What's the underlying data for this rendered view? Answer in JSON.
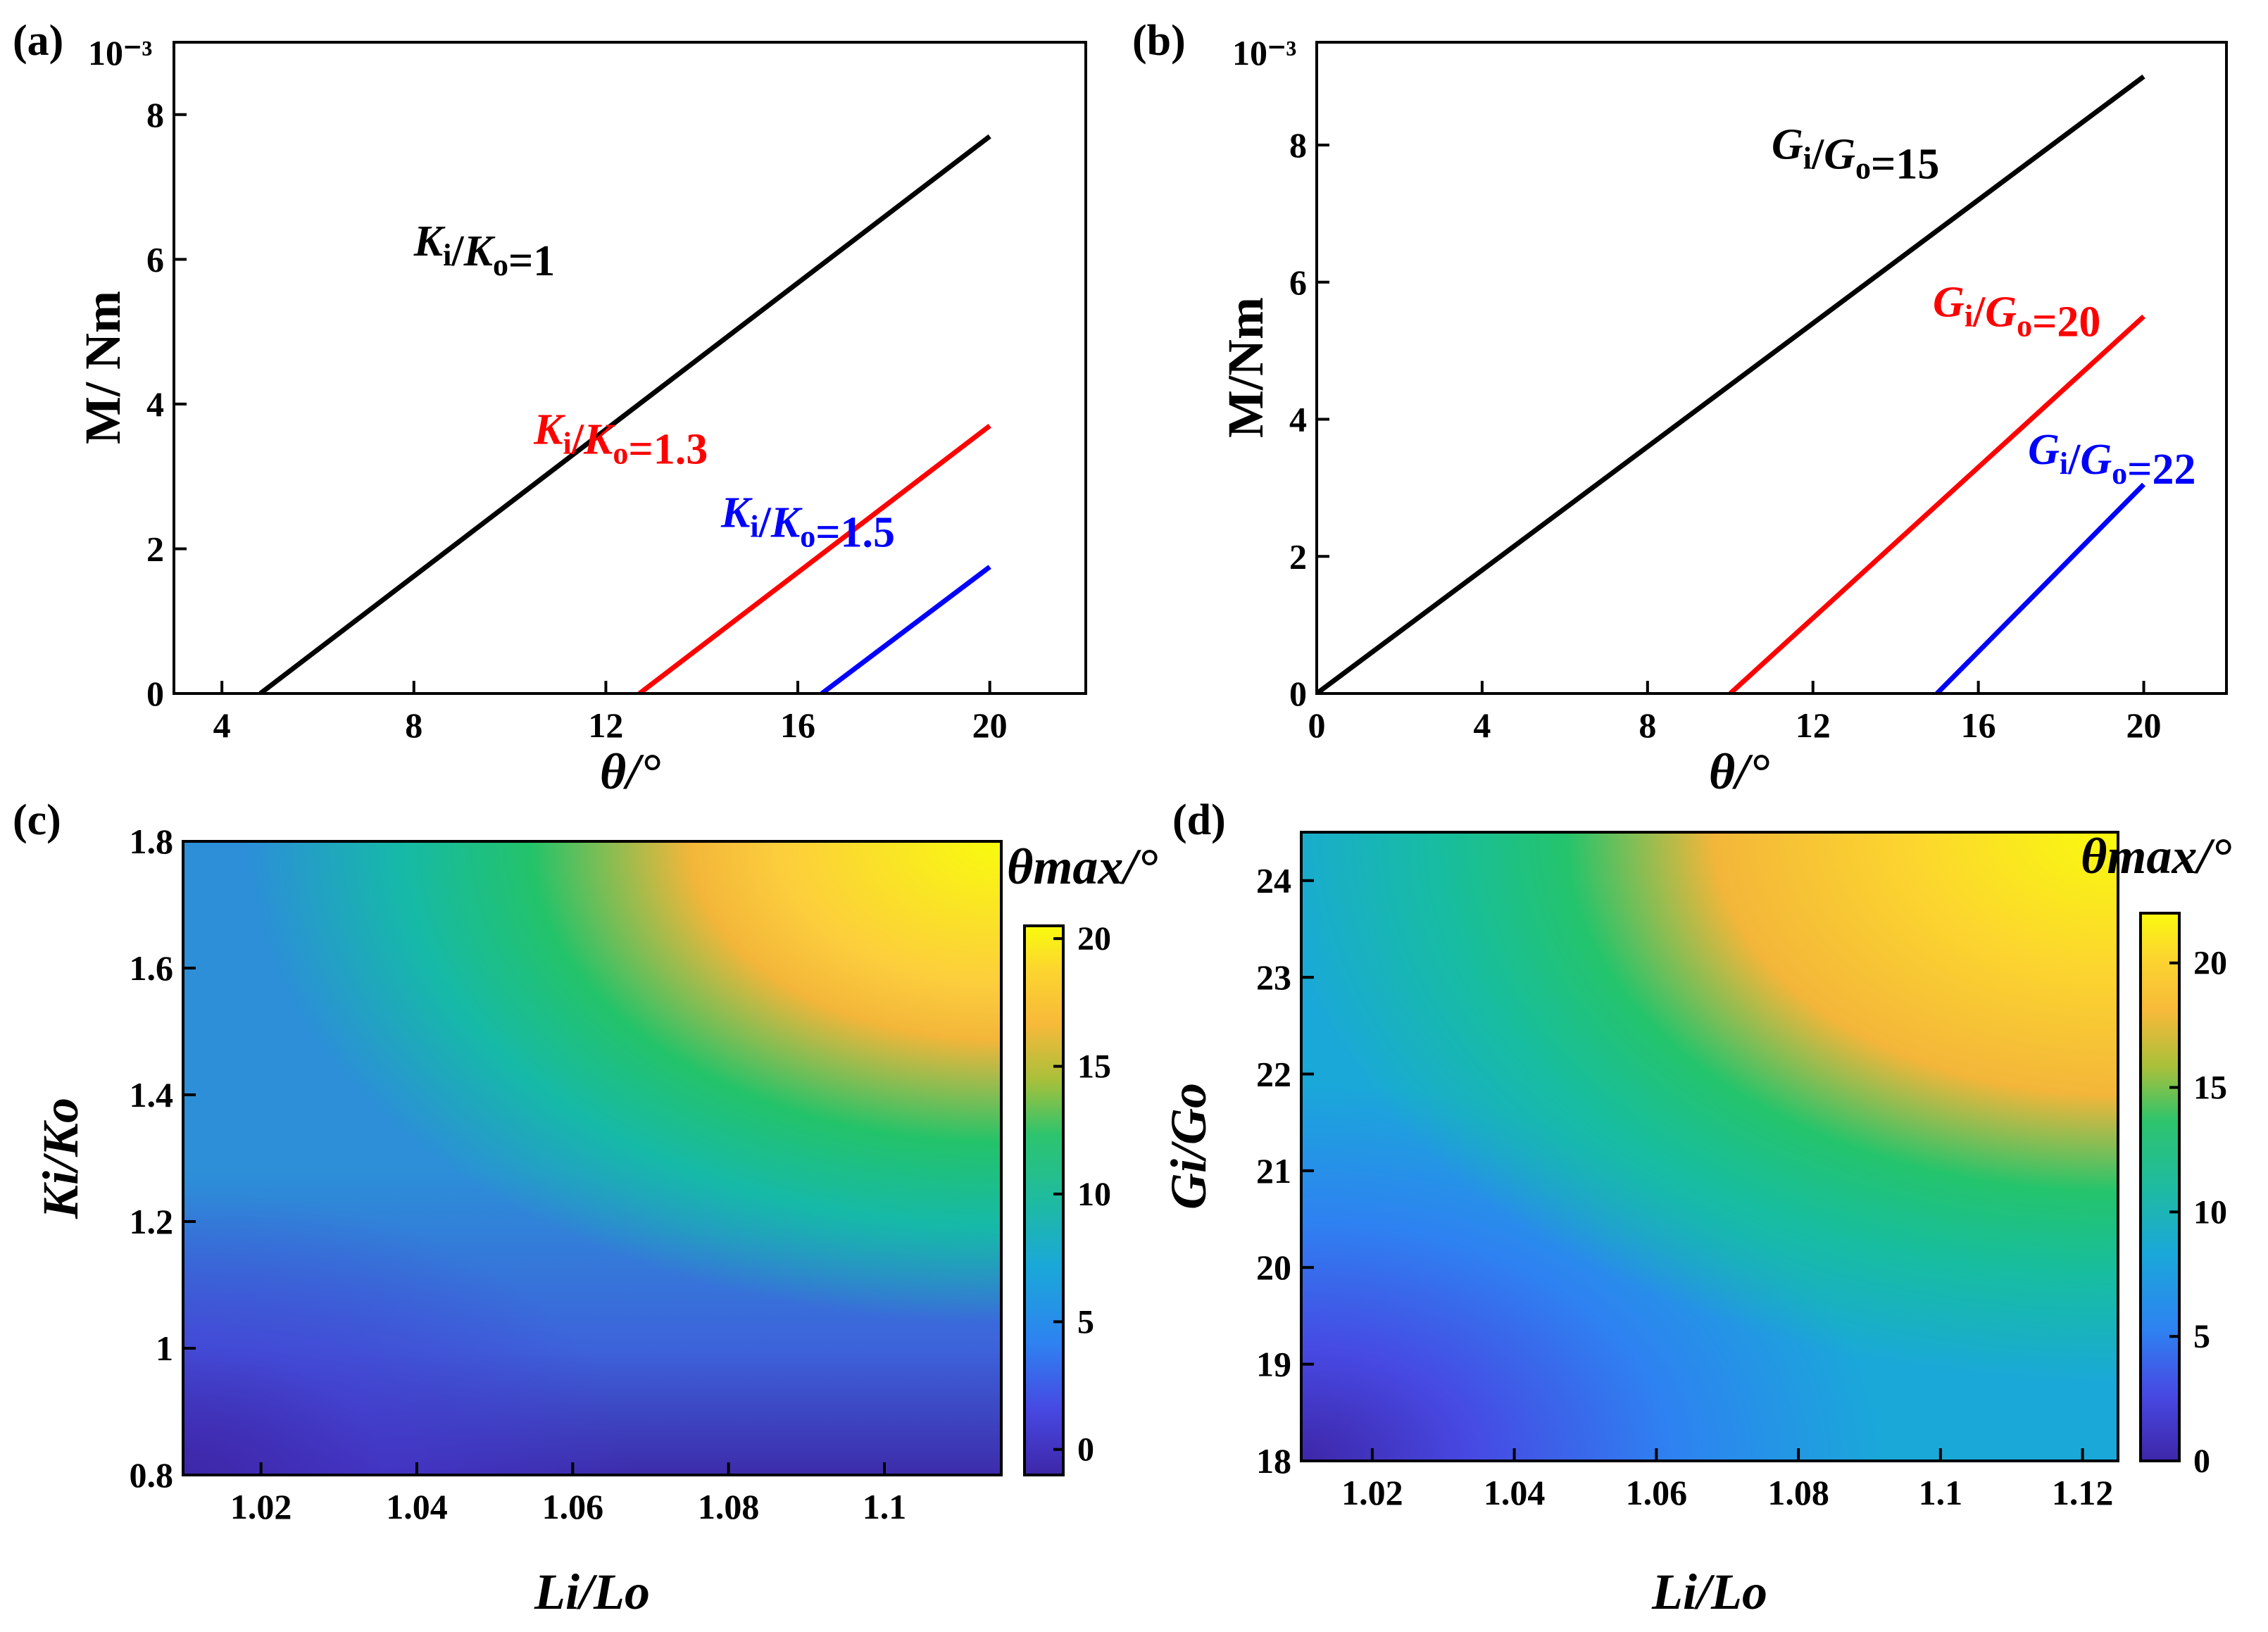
{
  "chart_data": [
    {
      "panel": "(a)",
      "type": "line",
      "xlabel": "θ/°",
      "ylabel": "M/ Nm",
      "yscale_label": "10⁻³",
      "xlim": [
        3,
        22
      ],
      "ylim": [
        0,
        9
      ],
      "xticks": [
        4,
        8,
        12,
        16,
        20
      ],
      "yticks": [
        0,
        2,
        4,
        6,
        8
      ],
      "series": [
        {
          "name": "Ki/Ko=1",
          "color": "#000000",
          "x": [
            4.8,
            20
          ],
          "y": [
            0,
            7.7
          ]
        },
        {
          "name": "Ki/Ko=1.3",
          "color": "#ff0000",
          "x": [
            12.7,
            20
          ],
          "y": [
            0,
            3.7
          ]
        },
        {
          "name": "Ki/Ko=1.5",
          "color": "#0000ff",
          "x": [
            16.5,
            20
          ],
          "y": [
            0,
            1.75
          ]
        }
      ],
      "annotations": [
        {
          "var": "K",
          "num": "1",
          "color": "#000000",
          "x": 8,
          "y": 6.05
        },
        {
          "var": "K",
          "num": "1.3",
          "color": "#ff0000",
          "x": 10.5,
          "y": 3.45
        },
        {
          "var": "K",
          "num": "1.5",
          "color": "#0000ff",
          "x": 14.4,
          "y": 2.3
        }
      ]
    },
    {
      "panel": "(b)",
      "type": "line",
      "xlabel": "θ/°",
      "ylabel": "M/Nm",
      "yscale_label": "10⁻³",
      "xlim": [
        0,
        22
      ],
      "ylim": [
        0,
        9.5
      ],
      "xticks": [
        0,
        4,
        8,
        12,
        16,
        20
      ],
      "yticks": [
        0,
        2,
        4,
        6,
        8
      ],
      "series": [
        {
          "name": "Gi/Go=15",
          "color": "#000000",
          "x": [
            0,
            20
          ],
          "y": [
            0,
            9.0
          ]
        },
        {
          "name": "Gi/Go=20",
          "color": "#ff0000",
          "x": [
            10,
            20
          ],
          "y": [
            0,
            5.5
          ]
        },
        {
          "name": "Gi/Go=22",
          "color": "#0000ff",
          "x": [
            15,
            20
          ],
          "y": [
            0,
            3.05
          ]
        }
      ],
      "annotations": [
        {
          "var": "G",
          "num": "15",
          "color": "#000000",
          "x": 11,
          "y": 7.8
        },
        {
          "var": "G",
          "num": "20",
          "color": "#ff0000",
          "x": 14.9,
          "y": 5.5
        },
        {
          "var": "G",
          "num": "22",
          "color": "#0000ff",
          "x": 17.2,
          "y": 3.35
        }
      ]
    },
    {
      "panel": "(c)",
      "type": "heatmap",
      "xlabel": "Li/Lo",
      "ylabel": "Ki/Ko",
      "xlim": [
        1.01,
        1.115
      ],
      "ylim": [
        0.8,
        1.8
      ],
      "xticks": [
        1.02,
        1.04,
        1.06,
        1.08,
        1.1
      ],
      "xticklabels": [
        "1.02",
        "1.04",
        "1.06",
        "1.08",
        "1.1"
      ],
      "yticks": [
        0.8,
        1.0,
        1.2,
        1.4,
        1.6,
        1.8
      ],
      "yticklabels": [
        "0.8",
        "1",
        "1.2",
        "1.4",
        "1.6",
        "1.8"
      ],
      "colorbar": {
        "label": "θmax/°",
        "min": -1,
        "max": 20.5,
        "ticks": [
          0,
          5,
          10,
          15,
          20
        ]
      },
      "value_range": [
        -1,
        20.5
      ],
      "description": "θmax rises with both Li/Lo and Ki/Ko; minimum near 0 at lower-left, maximum near 20 at upper-right"
    },
    {
      "panel": "(d)",
      "type": "heatmap",
      "xlabel": "Li/Lo",
      "ylabel": "Gi/Go",
      "xlim": [
        1.01,
        1.125
      ],
      "ylim": [
        18,
        24.5
      ],
      "xticks": [
        1.02,
        1.04,
        1.06,
        1.08,
        1.1,
        1.12
      ],
      "xticklabels": [
        "1.02",
        "1.04",
        "1.06",
        "1.08",
        "1.1",
        "1.12"
      ],
      "yticks": [
        18,
        19,
        20,
        21,
        22,
        23,
        24
      ],
      "yticklabels": [
        "18",
        "19",
        "20",
        "21",
        "22",
        "23",
        "24"
      ],
      "colorbar": {
        "label": "θmax/°",
        "min": 0,
        "max": 22,
        "ticks": [
          0,
          5,
          10,
          15,
          20
        ]
      },
      "value_range": [
        0,
        22
      ],
      "description": "θmax rises with both Li/Lo and Gi/Go; minimum near 0 at lower-left, maximum near 22 at upper-right"
    }
  ]
}
